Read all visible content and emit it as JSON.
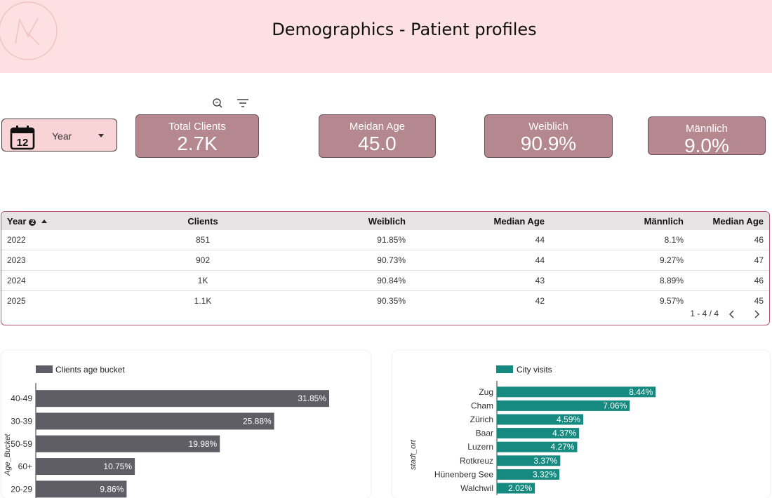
{
  "header": {
    "title": "Demographics - Patient profiles"
  },
  "toolbar": {
    "zoom_icon": "zoom-search-icon",
    "filter_icon": "filter-icon"
  },
  "date_control": {
    "icon_day": "12",
    "label": "Year"
  },
  "kpis": [
    {
      "label": "Total Clients",
      "value": "2.7K"
    },
    {
      "label": "Meidan Age",
      "value": "45.0"
    },
    {
      "label": "Weiblich",
      "value": "90.9%"
    },
    {
      "label": "Männlich",
      "value": "9.0%"
    }
  ],
  "table": {
    "headers": [
      "Year",
      "Clients",
      "Weiblich",
      "Median Age",
      "Männlich",
      "Median Age"
    ],
    "sort_badge": "2",
    "rows": [
      [
        "2022",
        "851",
        "91.85%",
        "44",
        "8.1%",
        "46"
      ],
      [
        "2023",
        "902",
        "90.73%",
        "44",
        "9.27%",
        "47"
      ],
      [
        "2024",
        "1K",
        "90.84%",
        "43",
        "8.89%",
        "46"
      ],
      [
        "2025",
        "1.1K",
        "90.35%",
        "42",
        "9.57%",
        "45"
      ]
    ],
    "pagination": "1 - 4 / 4"
  },
  "colors": {
    "header_bg": "#fde0e1",
    "kpi_bg": "#b5878e",
    "age_bar": "#5f5e66",
    "city_bar": "#168a80",
    "table_border": "#b55272"
  },
  "chart_data": [
    {
      "type": "bar",
      "orientation": "horizontal",
      "legend": "Clients age bucket",
      "ylabel": "Age_Bucket",
      "categories": [
        "40-49",
        "30-39",
        "50-59",
        "60+",
        "20-29"
      ],
      "values": [
        31.85,
        25.88,
        19.98,
        10.75,
        9.86
      ],
      "value_labels": [
        "31.85%",
        "25.88%",
        "19.98%",
        "10.75%",
        "9.86%"
      ],
      "xlim": [
        0,
        32
      ]
    },
    {
      "type": "bar",
      "orientation": "horizontal",
      "legend": "City visits",
      "ylabel": "stadt_ort",
      "categories": [
        "Zug",
        "Cham",
        "Zürich",
        "Baar",
        "Luzern",
        "Rotkreuz",
        "Hünenberg See",
        "Walchwil"
      ],
      "values": [
        8.44,
        7.06,
        4.59,
        4.37,
        4.27,
        3.37,
        3.32,
        2.02
      ],
      "value_labels": [
        "8.44%",
        "7.06%",
        "4.59%",
        "4.37%",
        "4.27%",
        "3.37%",
        "3.32%",
        "2.02%"
      ],
      "xlim": [
        0,
        9.4
      ]
    }
  ]
}
